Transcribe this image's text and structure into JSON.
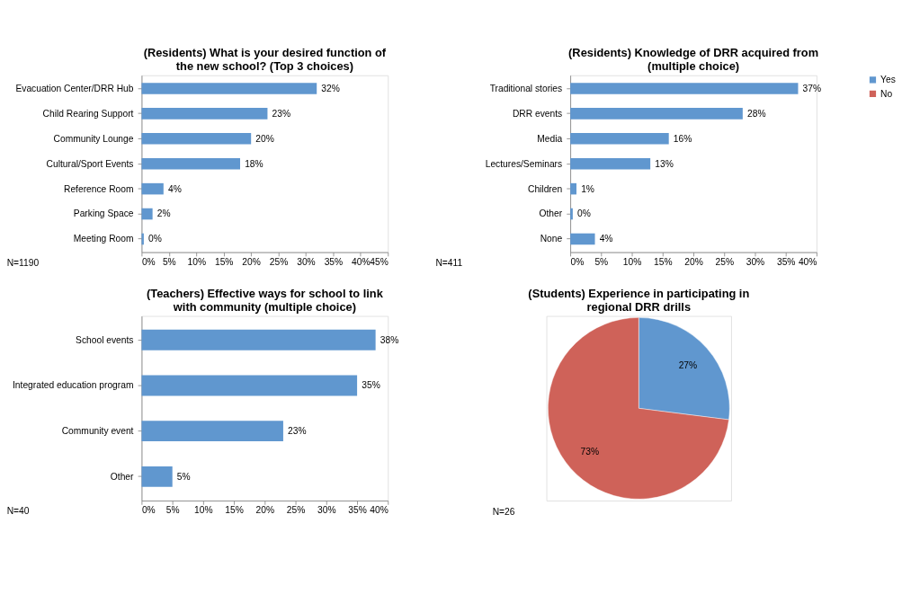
{
  "chart_data": [
    {
      "type": "bar",
      "orientation": "horizontal",
      "title": "(Residents) What is your desired function of the new school? (Top 3 choices)",
      "categories": [
        "Evacuation Center/DRR Hub",
        "Child Rearing Support",
        "Community Lounge",
        "Cultural/Sport Events",
        "Reference Room",
        "Parking Space",
        "Meeting Room"
      ],
      "values": [
        32,
        23,
        20,
        18,
        4,
        2,
        0.4
      ],
      "value_labels": [
        "32%",
        "23%",
        "20%",
        "18%",
        "4%",
        "2%",
        "0%"
      ],
      "color": "#6097cf",
      "xlim": [
        0,
        45
      ],
      "xticks": [
        {
          "value": 0,
          "label": "0%"
        },
        {
          "value": 5,
          "label": "5%"
        },
        {
          "value": 10,
          "label": "10%"
        },
        {
          "value": 15,
          "label": "15%"
        },
        {
          "value": 20,
          "label": "20%"
        },
        {
          "value": 25,
          "label": "25%"
        },
        {
          "value": 30,
          "label": "30%"
        },
        {
          "value": 35,
          "label": "35%"
        },
        {
          "value": 40,
          "label": "40%"
        },
        {
          "value": 45,
          "label": "45%"
        }
      ],
      "grid": false,
      "annotations": [
        "N=1190"
      ]
    },
    {
      "type": "bar",
      "orientation": "horizontal",
      "title": "(Residents) Knowledge of DRR acquired from (multiple choice)",
      "categories": [
        "Traditional stories",
        "DRR events",
        "Media",
        "Lectures/Seminars",
        "Children",
        "Other",
        "None"
      ],
      "values": [
        37,
        28,
        16,
        13,
        1,
        0.4,
        4
      ],
      "value_labels": [
        "37%",
        "28%",
        "16%",
        "13%",
        "1%",
        "0%",
        "4%"
      ],
      "color": "#6097cf",
      "xlim": [
        0,
        40
      ],
      "xticks": [
        {
          "value": 0,
          "label": "0%"
        },
        {
          "value": 5,
          "label": "5%"
        },
        {
          "value": 10,
          "label": "10%"
        },
        {
          "value": 15,
          "label": "15%"
        },
        {
          "value": 20,
          "label": "20%"
        },
        {
          "value": 25,
          "label": "25%"
        },
        {
          "value": 30,
          "label": "30%"
        },
        {
          "value": 35,
          "label": "35%"
        },
        {
          "value": 40,
          "label": "40%"
        }
      ],
      "grid": false,
      "annotations": [
        "N=411"
      ]
    },
    {
      "type": "bar",
      "orientation": "horizontal",
      "title": "(Teachers) Effective ways for school to link with community (multiple choice)",
      "categories": [
        "School events",
        "Integrated education program",
        "Community event",
        "Other"
      ],
      "values": [
        38,
        35,
        23,
        5
      ],
      "value_labels": [
        "38%",
        "35%",
        "23%",
        "5%"
      ],
      "color": "#6097cf",
      "xlim": [
        0,
        40
      ],
      "xticks": [
        {
          "value": 0,
          "label": "0%"
        },
        {
          "value": 5,
          "label": "5%"
        },
        {
          "value": 10,
          "label": "10%"
        },
        {
          "value": 15,
          "label": "15%"
        },
        {
          "value": 20,
          "label": "20%"
        },
        {
          "value": 25,
          "label": "25%"
        },
        {
          "value": 30,
          "label": "30%"
        },
        {
          "value": 35,
          "label": "35%"
        },
        {
          "value": 40,
          "label": "40%"
        }
      ],
      "grid": false,
      "annotations": [
        "N=40"
      ]
    },
    {
      "type": "pie",
      "title": "(Students) Experience in participating in regional DRR drills",
      "categories": [
        "Yes",
        "No"
      ],
      "values": [
        27,
        73
      ],
      "value_labels": [
        "27%",
        "73%"
      ],
      "colors": [
        "#6097cf",
        "#cf6259"
      ],
      "legend": "right",
      "annotations": [
        "N=26"
      ]
    }
  ]
}
